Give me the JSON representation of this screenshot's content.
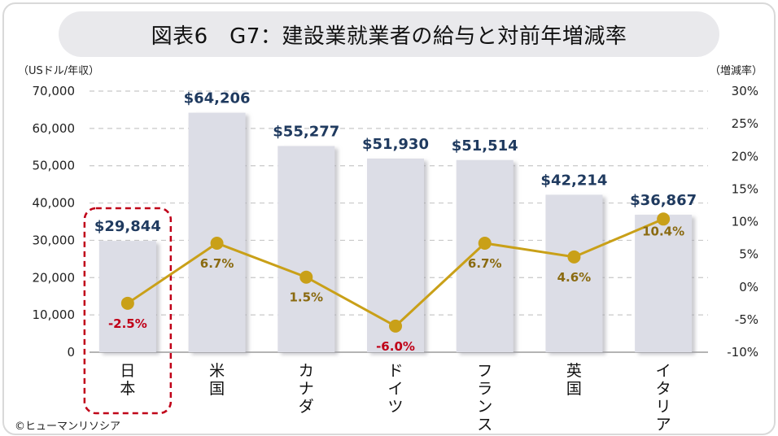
{
  "title": "図表6　G7：建設業就業者の給与と対前年増減率",
  "left_axis_unit": "（USドル/年収）",
  "right_axis_unit": "（増減率）",
  "copyright": "©ヒューマンリソシア",
  "colors": {
    "bar": "#dcdde6",
    "bar_shadow": "#b9bac4",
    "line": "#c9a018",
    "bar_label": "#1f3a5f",
    "positive_label": "#8a6a10",
    "negative_label": "#c00018",
    "highlight": "#c00018",
    "grid": "#c8c8c8"
  },
  "chart_data": {
    "type": "bar",
    "categories": [
      "日本",
      "米国",
      "カナダ",
      "ドイツ",
      "フランス",
      "英国",
      "イタリア"
    ],
    "series": [
      {
        "type": "bar",
        "values": [
          29844,
          64206,
          55277,
          51930,
          51514,
          42214,
          36867
        ],
        "labels": [
          "$29,844",
          "$64,206",
          "$55,277",
          "$51,930",
          "$51,514",
          "$42,214",
          "$36,867"
        ]
      },
      {
        "type": "line",
        "axis": "right",
        "values": [
          -2.5,
          6.7,
          1.5,
          -6.0,
          6.7,
          4.6,
          10.4
        ],
        "labels": [
          "-2.5%",
          "6.7%",
          "1.5%",
          "-6.0%",
          "6.7%",
          "4.6%",
          "10.4%"
        ]
      }
    ],
    "ylim": [
      0,
      70000
    ],
    "yticks": [
      "0",
      "10,000",
      "20,000",
      "30,000",
      "40,000",
      "50,000",
      "60,000",
      "70,000"
    ],
    "y2lim": [
      -10,
      30
    ],
    "y2ticks": [
      "-10%",
      "-5%",
      "0%",
      "5%",
      "10%",
      "15%",
      "20%",
      "25%",
      "30%"
    ],
    "highlighted_category": "日本",
    "grid": true
  }
}
